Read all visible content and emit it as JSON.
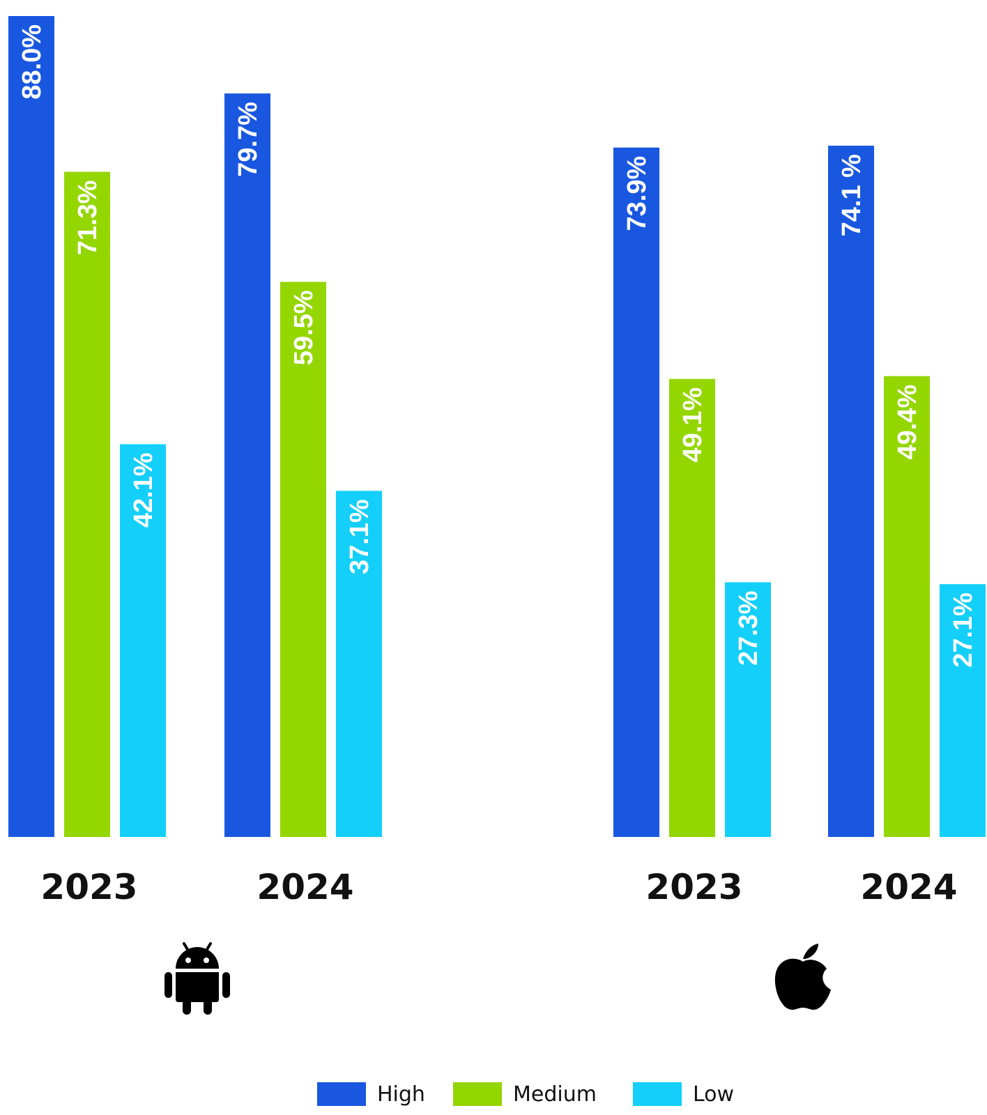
{
  "chart_data": {
    "type": "bar",
    "groups": [
      {
        "platform_icon": "android-icon",
        "years": [
          {
            "label": "2023",
            "values": [
              88.0,
              71.3,
              42.1
            ],
            "value_labels": [
              "88.0%",
              "71.3%",
              "42.1%"
            ]
          },
          {
            "label": "2024",
            "values": [
              79.7,
              59.5,
              37.1
            ],
            "value_labels": [
              "79.7%",
              "59.5%",
              "37.1%"
            ]
          }
        ]
      },
      {
        "platform_icon": "apple-icon",
        "years": [
          {
            "label": "2023",
            "values": [
              73.9,
              49.1,
              27.3
            ],
            "value_labels": [
              "73.9%",
              "49.1%",
              "27.3%"
            ]
          },
          {
            "label": "2024",
            "values": [
              74.1,
              49.4,
              27.1
            ],
            "value_labels": [
              "74.1 %",
              "49.4%",
              "27.1%"
            ]
          }
        ]
      }
    ],
    "series": [
      {
        "name": "High",
        "color": "#1957E1"
      },
      {
        "name": "Medium",
        "color": "#94D600"
      },
      {
        "name": "Low",
        "color": "#13CFFA"
      }
    ],
    "ylim": [
      0,
      88
    ],
    "grid": false,
    "legend_position": "bottom-center"
  },
  "legend": {
    "items": [
      {
        "label": "High",
        "color": "#1957E1"
      },
      {
        "label": "Medium",
        "color": "#94D600"
      },
      {
        "label": "Low",
        "color": "#13CFFA"
      }
    ]
  }
}
